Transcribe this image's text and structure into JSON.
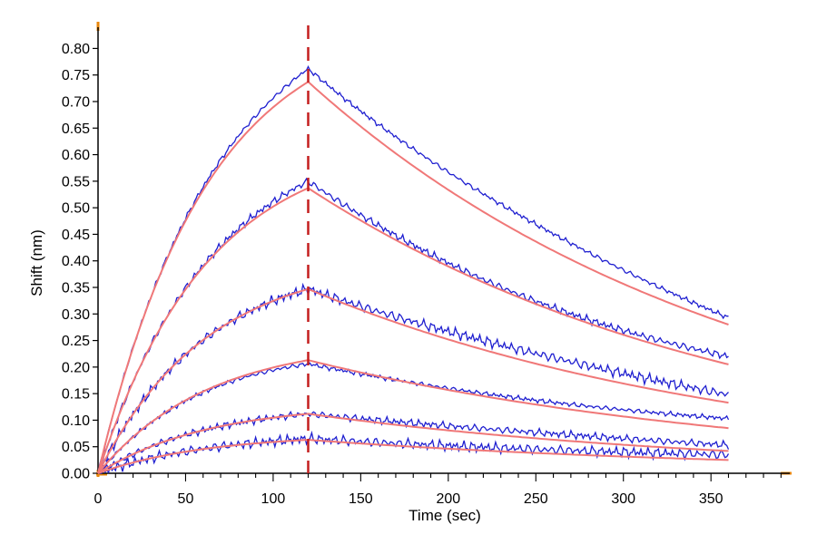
{
  "chart_data": {
    "type": "line",
    "title": "",
    "xlabel": "Time (sec)",
    "ylabel": "Shift (nm)",
    "xlim": [
      0,
      395
    ],
    "ylim": [
      0,
      0.84
    ],
    "x_ticks": [
      0,
      50,
      100,
      150,
      200,
      250,
      300,
      350
    ],
    "x_tick_labels": [
      "0",
      "50",
      "100",
      "150",
      "200",
      "250",
      "300",
      "350"
    ],
    "y_ticks": [
      0,
      0.05,
      0.1,
      0.15,
      0.2,
      0.25,
      0.3,
      0.35,
      0.4,
      0.45,
      0.5,
      0.55,
      0.6,
      0.65,
      0.7,
      0.75,
      0.8
    ],
    "y_tick_labels": [
      "0.00",
      "0.05",
      "0.10",
      "0.15",
      "0.20",
      "0.25",
      "0.30",
      "0.35",
      "0.40",
      "0.45",
      "0.50",
      "0.55",
      "0.60",
      "0.65",
      "0.70",
      "0.75",
      "0.80"
    ],
    "grid": false,
    "legend": "none",
    "dissociation_start_x": 120,
    "association_end_x": 120,
    "end_x": 360,
    "colors": {
      "measured": "#1f1fd0",
      "fitted": "#f07878",
      "marker": "#c41e1e",
      "axis_corner": "#e8860a"
    },
    "series": [
      {
        "peak_measured": 0.762,
        "peak_fit": 0.737,
        "end_measured": 0.293,
        "end_fit": 0.28
      },
      {
        "peak_measured": 0.55,
        "peak_fit": 0.537,
        "end_measured": 0.22,
        "end_fit": 0.205
      },
      {
        "peak_measured": 0.347,
        "peak_fit": 0.347,
        "end_measured": 0.148,
        "end_fit": 0.133
      },
      {
        "peak_measured": 0.206,
        "peak_fit": 0.213,
        "end_measured": 0.103,
        "end_fit": 0.085
      },
      {
        "peak_measured": 0.112,
        "peak_fit": 0.112,
        "end_measured": 0.053,
        "end_fit": 0.042
      },
      {
        "peak_measured": 0.065,
        "peak_fit": 0.063,
        "end_measured": 0.035,
        "end_fit": 0.025
      }
    ]
  }
}
